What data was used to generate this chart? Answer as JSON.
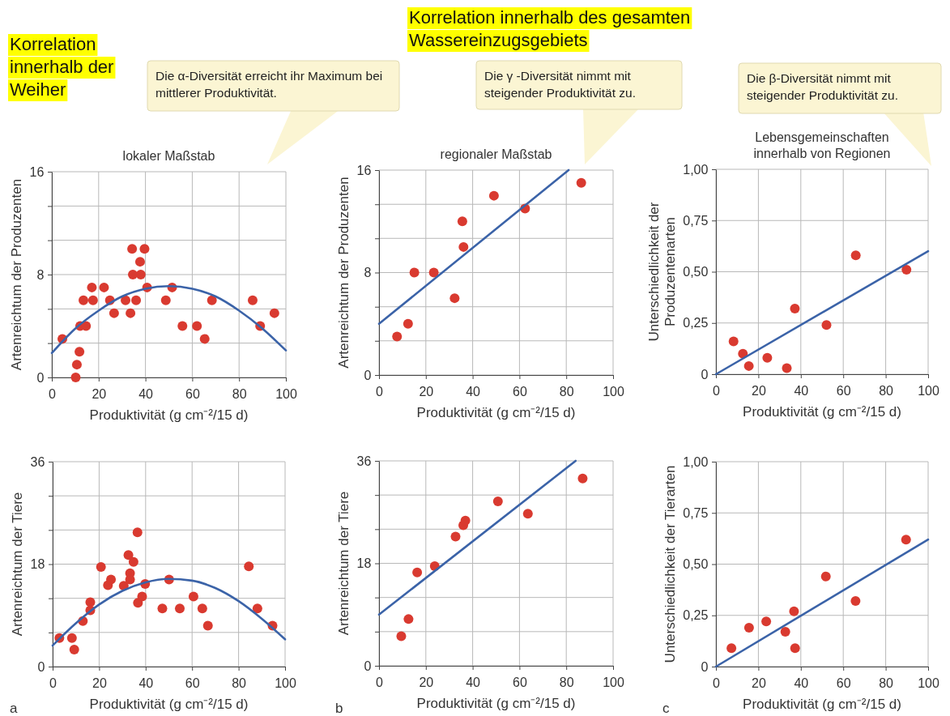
{
  "chart_data": [
    {
      "type": "scatter",
      "title": "lokaler Maßstab",
      "xlabel": "Produktivität (g cm⁻²/15 d)",
      "ylabel": "Artenreichtum der Produzenten",
      "annotations": [
        "Korrelation innerhalb der Weiher",
        "Die α-Diversität erreicht ihr Maximum bei mittlerer Produktivität."
      ],
      "xlim": [
        0,
        100
      ],
      "xticks": [
        0,
        20,
        40,
        60,
        80,
        100
      ],
      "ylim": [
        0,
        16
      ],
      "yticks": [
        0,
        {
          "value": 2.67,
          "label": null
        },
        {
          "value": 5.33,
          "label": null
        },
        8,
        {
          "value": 10.67,
          "label": null
        },
        {
          "value": 13.33,
          "label": null
        },
        16
      ],
      "grid": true,
      "series": [
        {
          "type": "scatter",
          "marker": "circle",
          "color": "#d93a30",
          "x": [
            4.5,
            10.2,
            10.7,
            11.8,
            12.1,
            14.6,
            13.5,
            17.1,
            17.6,
            22.3,
            24.8,
            26.6,
            31.5,
            33.6,
            34.3,
            34.6,
            36,
            37.7,
            38,
            39.6,
            40.7,
            48.7,
            51.4,
            55.8,
            62,
            65.3,
            68.4,
            85.8,
            89,
            95.1
          ],
          "values": [
            3,
            0,
            1,
            2,
            4,
            4,
            6,
            7,
            6,
            7,
            6,
            5,
            6,
            5,
            10,
            8,
            6,
            9,
            8,
            10,
            7,
            6,
            7,
            4,
            4,
            3,
            6,
            6,
            4,
            5
          ]
        },
        {
          "type": "line",
          "marker": "none",
          "color": "#3b63a8",
          "x": [
            0,
            10,
            20,
            30,
            40,
            50,
            60,
            70,
            80,
            90,
            100
          ],
          "values": [
            1.9,
            3.8,
            5.2,
            6.3,
            6.9,
            7.1,
            6.9,
            6.3,
            5.2,
            3.8,
            2.1
          ]
        }
      ]
    },
    {
      "type": "scatter",
      "title": "regionaler Maßstab",
      "xlabel": "Produktivität (g cm⁻²/15 d)",
      "ylabel": "Artenreichtum der Produzenten",
      "annotations": [
        "Korrelation innerhalb des gesamten Wassereinzugsgebiets",
        "Die γ -Diversität nimmt mit steigender Produktivität zu."
      ],
      "xlim": [
        0,
        100
      ],
      "xticks": [
        0,
        20,
        40,
        60,
        80,
        100
      ],
      "ylim": [
        0,
        16
      ],
      "yticks": [
        0,
        {
          "value": 2.67,
          "label": null
        },
        {
          "value": 5.33,
          "label": null
        },
        8,
        {
          "value": 10.67,
          "label": null
        },
        {
          "value": 13.33,
          "label": null
        },
        16
      ],
      "grid": true,
      "series": [
        {
          "type": "scatter",
          "marker": "circle",
          "color": "#d93a30",
          "x": [
            7.7,
            12.4,
            15.1,
            23.4,
            32.3,
            35.6,
            36.1,
            49.1,
            62.4,
            86.4
          ],
          "values": [
            3,
            4,
            8,
            8,
            6,
            12,
            10,
            14,
            13,
            15
          ]
        },
        {
          "type": "line",
          "marker": "none",
          "color": "#3b63a8",
          "x": [
            0,
            81
          ],
          "values": [
            4,
            16
          ]
        }
      ]
    },
    {
      "type": "scatter",
      "title": "Lebensgemeinschaften innerhalb von Regionen",
      "xlabel": "Produktivität (g cm⁻²/15 d)",
      "ylabel": "Unterschiedlichkeit der Produzentenarten",
      "annotations": [
        "Die β-Diversität nimmt mit steigender Produktivität zu."
      ],
      "xlim": [
        0,
        100
      ],
      "xticks": [
        0,
        20,
        40,
        60,
        80,
        100
      ],
      "ylim": [
        0,
        1
      ],
      "yticks": [
        0,
        {
          "value": 0.25,
          "label": "0,25"
        },
        {
          "value": 0.5,
          "label": "0,50"
        },
        {
          "value": 0.75,
          "label": "0,75"
        },
        {
          "value": 1,
          "label": "1,00"
        }
      ],
      "grid": true,
      "series": [
        {
          "type": "scatter",
          "marker": "circle",
          "color": "#d93a30",
          "x": [
            8.3,
            12.7,
            15.5,
            24.2,
            33.4,
            37.2,
            52.1,
            65.9,
            89.8
          ],
          "values": [
            0.16,
            0.1,
            0.04,
            0.08,
            0.03,
            0.32,
            0.24,
            0.58,
            0.51
          ]
        },
        {
          "type": "line",
          "marker": "none",
          "color": "#3b63a8",
          "x": [
            0,
            100
          ],
          "values": [
            0,
            0.6
          ]
        }
      ]
    },
    {
      "type": "scatter",
      "xlabel": "Produktivität (g cm⁻²/15 d)",
      "ylabel": "Artenreichtum der Tiere",
      "annotations": [
        "a"
      ],
      "xlim": [
        0,
        100
      ],
      "xticks": [
        0,
        20,
        40,
        60,
        80,
        100
      ],
      "ylim": [
        0,
        36
      ],
      "yticks": [
        0,
        {
          "value": 6,
          "label": null
        },
        {
          "value": 12,
          "label": null
        },
        18,
        {
          "value": 24,
          "label": null
        },
        {
          "value": 30,
          "label": null
        },
        36
      ],
      "grid": true,
      "series": [
        {
          "type": "scatter",
          "marker": "circle",
          "color": "#d93a30",
          "x": [
            2.9,
            8.3,
            9.3,
            13,
            16.2,
            16.2,
            20.8,
            23.8,
            25.1,
            30.6,
            32.6,
            33.3,
            33.3,
            34.8,
            36.5,
            36.7,
            38.5,
            39.8,
            47.2,
            50.1,
            54.7,
            60.6,
            64.4,
            66.8,
            84.4,
            88.1,
            94.6
          ],
          "values": [
            5,
            5,
            3,
            8,
            11.3,
            9.9,
            17.5,
            14.3,
            15.3,
            14.2,
            19.6,
            16.4,
            15.3,
            18.4,
            23.6,
            11.2,
            12.3,
            14.5,
            10.2,
            15.3,
            10.2,
            12.3,
            10.2,
            7.2,
            17.6,
            10.2,
            7.2
          ]
        },
        {
          "type": "line",
          "marker": "none",
          "color": "#3b63a8",
          "x": [
            0,
            10,
            20,
            30,
            40,
            50,
            60,
            70,
            80,
            90,
            100
          ],
          "values": [
            3.7,
            7.6,
            10.9,
            13.3,
            14.8,
            15.4,
            15.1,
            13.8,
            11.5,
            8.4,
            4.8
          ]
        }
      ]
    },
    {
      "type": "scatter",
      "xlabel": "Produktivität (g cm⁻²/15 d)",
      "ylabel": "Artenreichtum der Tiere",
      "annotations": [
        "b"
      ],
      "xlim": [
        0,
        100
      ],
      "xticks": [
        0,
        20,
        40,
        60,
        80,
        100
      ],
      "ylim": [
        0,
        36
      ],
      "yticks": [
        0,
        {
          "value": 6,
          "label": null
        },
        {
          "value": 12,
          "label": null
        },
        18,
        {
          "value": 24,
          "label": null
        },
        {
          "value": 30,
          "label": null
        },
        36
      ],
      "grid": true,
      "series": [
        {
          "type": "scatter",
          "marker": "circle",
          "color": "#d93a30",
          "x": [
            9.5,
            12.6,
            16.3,
            23.8,
            32.7,
            36,
            36.9,
            50.8,
            63.6,
            87
          ],
          "values": [
            5.2,
            8.2,
            16.4,
            17.5,
            22.7,
            24.7,
            25.5,
            28.9,
            26.7,
            32.9
          ]
        },
        {
          "type": "line",
          "marker": "none",
          "color": "#3b63a8",
          "x": [
            0,
            84
          ],
          "values": [
            9,
            36
          ]
        }
      ]
    },
    {
      "type": "scatter",
      "xlabel": "Produktivität (g cm⁻²/15 d)",
      "ylabel": "Unterschiedlichkeit der Tierarten",
      "annotations": [
        "c"
      ],
      "xlim": [
        0,
        100
      ],
      "xticks": [
        0,
        20,
        40,
        60,
        80,
        100
      ],
      "ylim": [
        0,
        1
      ],
      "yticks": [
        0,
        {
          "value": 0.25,
          "label": "0,25"
        },
        {
          "value": 0.5,
          "label": "0,50"
        },
        {
          "value": 0.75,
          "label": "0,75"
        },
        {
          "value": 1,
          "label": "1,00"
        }
      ],
      "grid": true,
      "series": [
        {
          "type": "scatter",
          "marker": "circle",
          "color": "#d93a30",
          "x": [
            7.3,
            15.6,
            23.7,
            32.7,
            36.8,
            37.3,
            51.8,
            65.8,
            89.6
          ],
          "values": [
            0.09,
            0.19,
            0.22,
            0.17,
            0.27,
            0.09,
            0.44,
            0.32,
            0.62
          ]
        },
        {
          "type": "line",
          "marker": "none",
          "color": "#3b63a8",
          "x": [
            0,
            100
          ],
          "values": [
            0,
            0.62
          ]
        }
      ]
    }
  ]
}
